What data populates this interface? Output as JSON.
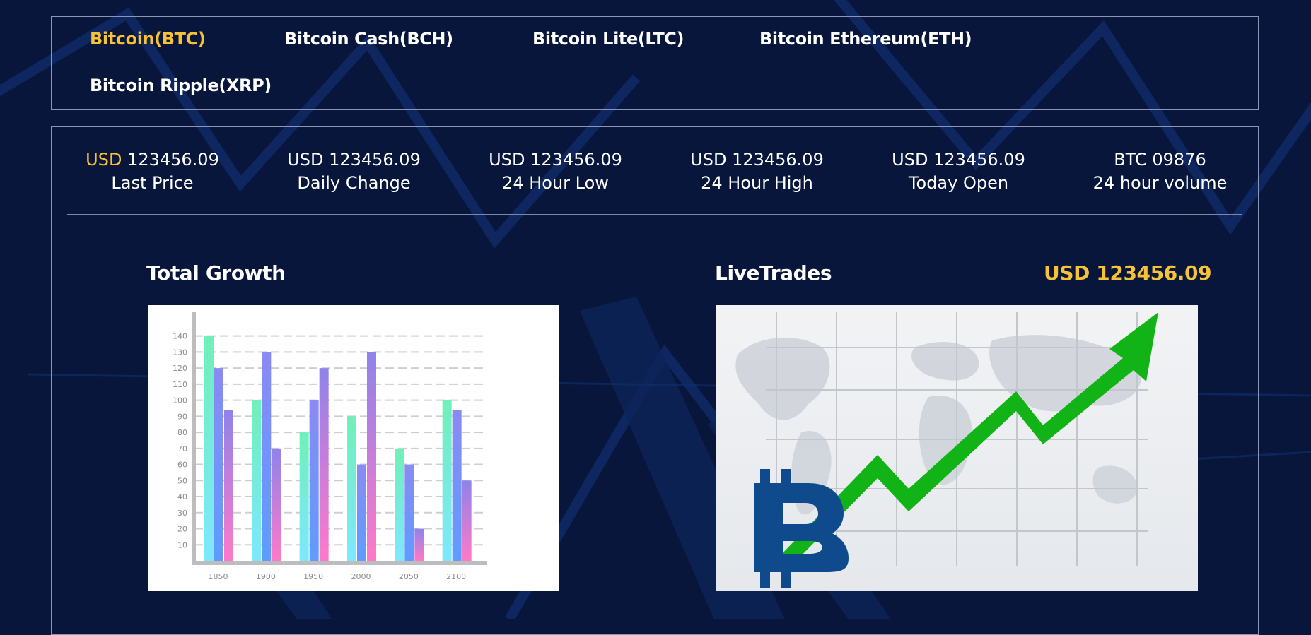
{
  "tabs": [
    {
      "label": "Bitcoin(BTC)",
      "active": true
    },
    {
      "label": "Bitcoin Cash(BCH)",
      "active": false
    },
    {
      "label": "Bitcoin Lite(LTC)",
      "active": false
    },
    {
      "label": "Bitcoin Ethereum(ETH)",
      "active": false
    },
    {
      "label": "Bitcoin Ripple(XRP)",
      "active": false
    }
  ],
  "stats": [
    {
      "currency": "USD",
      "value": "123456.09",
      "label": "Last Price"
    },
    {
      "currency": "USD",
      "value": "123456.09",
      "label": "Daily Change"
    },
    {
      "currency": "USD",
      "value": "123456.09",
      "label": "24 Hour Low"
    },
    {
      "currency": "USD",
      "value": "123456.09",
      "label": "24 Hour High"
    },
    {
      "currency": "USD",
      "value": "123456.09",
      "label": "Today Open"
    },
    {
      "currency": "BTC",
      "value": "09876",
      "label": "24 hour volume"
    }
  ],
  "total_growth": {
    "title": "Total Growth"
  },
  "live_trades": {
    "title": "LiveTrades",
    "price": "USD 123456.09"
  },
  "colors": {
    "background": "#07163a",
    "accent": "#f7c236",
    "border": "#8a96b3",
    "arrow_green": "#1fb31a",
    "bitcoin_blue": "#0f4a8c"
  },
  "icons": {
    "bitcoin": "bitcoin-logo",
    "trend": "green-up-arrow"
  },
  "chart_data": {
    "type": "bar",
    "categories": [
      "1850",
      "1900",
      "1950",
      "2000",
      "2050",
      "2100"
    ],
    "series": [
      {
        "values": [
          140,
          100,
          80,
          90,
          70,
          100
        ]
      },
      {
        "values": [
          120,
          130,
          100,
          60,
          60,
          94
        ]
      },
      {
        "values": [
          94,
          70,
          120,
          130,
          20,
          50
        ]
      }
    ],
    "yticks": [
      10,
      20,
      30,
      40,
      50,
      60,
      70,
      80,
      90,
      100,
      110,
      120,
      130,
      140
    ],
    "ylim": [
      0,
      146
    ],
    "grid": true,
    "colors": [
      "#66f2c0",
      "#7f80f0",
      "#8d7fe6"
    ]
  }
}
